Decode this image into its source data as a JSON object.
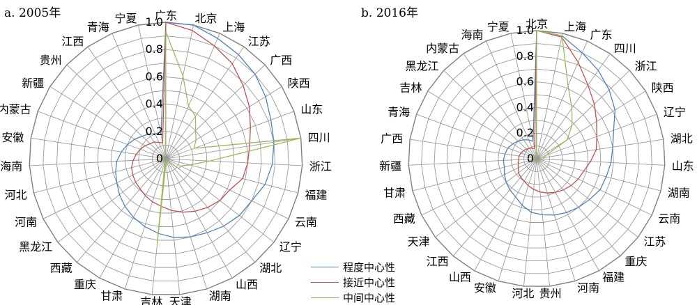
{
  "chart_data": [
    {
      "type": "radar",
      "title": "a. 2005年",
      "categories": [
        "广东",
        "北京",
        "上海",
        "江苏",
        "广西",
        "陕西",
        "山东",
        "四川",
        "浙江",
        "福建",
        "云南",
        "辽宁",
        "湖北",
        "山西",
        "湖南",
        "天津",
        "吉林",
        "甘肃",
        "重庆",
        "西藏",
        "黑龙江",
        "河南",
        "河北",
        "海南",
        "安徽",
        "内蒙古",
        "新疆",
        "贵州",
        "江西",
        "青海",
        "宁夏"
      ],
      "radial_ticks": [
        "0",
        "0.2",
        "0.4",
        "0.6",
        "0.8",
        "1.0"
      ],
      "rlim": [
        0,
        1
      ],
      "series": [
        {
          "name": "程度中心性",
          "color": "#4f81bd",
          "values": [
            1.0,
            1.0,
            0.96,
            0.93,
            0.9,
            0.86,
            0.82,
            0.8,
            0.78,
            0.75,
            0.7,
            0.68,
            0.65,
            0.62,
            0.6,
            0.58,
            0.55,
            0.52,
            0.49,
            0.46,
            0.43,
            0.4,
            0.38,
            0.36,
            0.33,
            0.3,
            0.27,
            0.24,
            0.22,
            0.2,
            0.18
          ]
        },
        {
          "name": "接近中心性",
          "color": "#c0504d",
          "values": [
            1.0,
            0.96,
            0.9,
            0.85,
            0.78,
            0.72,
            0.66,
            0.62,
            0.6,
            0.58,
            0.52,
            0.5,
            0.47,
            0.44,
            0.41,
            0.38,
            0.35,
            0.33,
            0.31,
            0.29,
            0.28,
            0.27,
            0.26,
            0.24,
            0.22,
            0.2,
            0.18,
            0.16,
            0.15,
            0.13,
            0.12
          ]
        },
        {
          "name": "中间中心性",
          "color": "#9bbb59",
          "values": [
            0.93,
            0.62,
            0.42,
            0.38,
            0.3,
            0.26,
            0.22,
            1.0,
            0.32,
            0.18,
            0.12,
            0.12,
            0.02,
            0.02,
            0.02,
            0.02,
            0.64,
            0.02,
            0.02,
            0.02,
            0.02,
            0.02,
            0.02,
            0.02,
            0.02,
            0.02,
            0.02,
            0.02,
            0.02,
            0.02,
            0.02
          ]
        }
      ]
    },
    {
      "type": "radar",
      "title": "b. 2016年",
      "categories": [
        "北京",
        "上海",
        "广东",
        "四川",
        "浙江",
        "陕西",
        "辽宁",
        "湖北",
        "山东",
        "湖南",
        "云南",
        "江苏",
        "重庆",
        "福建",
        "河南",
        "贵州",
        "河北",
        "安徽",
        "山西",
        "江西",
        "天津",
        "西藏",
        "甘肃",
        "新疆",
        "广西",
        "青海",
        "吉林",
        "黑龙江",
        "内蒙古",
        "海南",
        "宁夏"
      ],
      "radial_ticks": [
        "0",
        "0.2",
        "0.4",
        "0.6",
        "0.8",
        "1.0"
      ],
      "rlim": [
        0,
        1
      ],
      "series": [
        {
          "name": "程度中心性",
          "color": "#4f81bd",
          "values": [
            1.0,
            0.98,
            0.9,
            0.84,
            0.78,
            0.72,
            0.64,
            0.6,
            0.58,
            0.56,
            0.55,
            0.52,
            0.5,
            0.48,
            0.46,
            0.44,
            0.42,
            0.38,
            0.34,
            0.32,
            0.3,
            0.28,
            0.26,
            0.26,
            0.25,
            0.24,
            0.22,
            0.2,
            0.18,
            0.16,
            0.14
          ]
        },
        {
          "name": "接近中心性",
          "color": "#c0504d",
          "values": [
            1.0,
            0.97,
            0.82,
            0.7,
            0.62,
            0.55,
            0.5,
            0.47,
            0.42,
            0.38,
            0.36,
            0.34,
            0.32,
            0.3,
            0.28,
            0.26,
            0.24,
            0.22,
            0.2,
            0.19,
            0.18,
            0.16,
            0.15,
            0.14,
            0.14,
            0.13,
            0.12,
            0.11,
            0.1,
            0.09,
            0.08
          ]
        },
        {
          "name": "中间中心性",
          "color": "#9bbb59",
          "values": [
            1.0,
            0.98,
            0.62,
            0.48,
            0.38,
            0.28,
            0.08,
            0.06,
            0.05,
            0.04,
            0.03,
            0.03,
            0.02,
            0.02,
            0.02,
            0.02,
            0.02,
            0.02,
            0.02,
            0.02,
            0.02,
            0.02,
            0.02,
            0.02,
            0.02,
            0.02,
            0.02,
            0.02,
            0.02,
            0.02,
            0.02
          ]
        }
      ]
    }
  ],
  "legend": [
    {
      "label": "程度中心性",
      "color": "#4f81bd"
    },
    {
      "label": "接近中心性",
      "color": "#c0504d"
    },
    {
      "label": "中间中心性",
      "color": "#9bbb59"
    }
  ]
}
